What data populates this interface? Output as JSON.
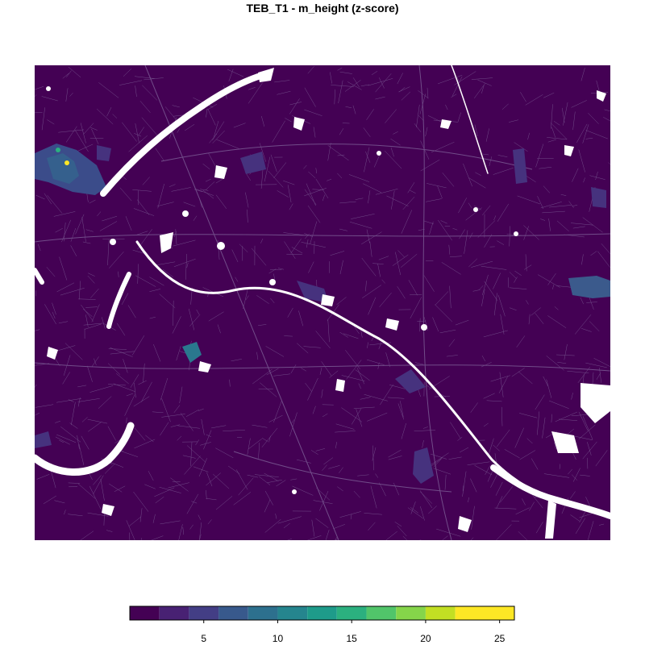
{
  "title": "TEB_T1 - m_height  (z-score)",
  "map": {
    "base_color": "#440154",
    "street_color": "#7a5a93",
    "gap_color": "#ffffff",
    "background": "#ffffff"
  },
  "legend": {
    "min": 0,
    "max": 26,
    "break_step": 2,
    "tick_values": [
      5,
      10,
      15,
      20,
      25
    ],
    "tick_labels": [
      "5",
      "10",
      "15",
      "20",
      "25"
    ],
    "palette": [
      "#440154",
      "#482173",
      "#433E85",
      "#38598C",
      "#2D708E",
      "#25858E",
      "#1E9B8A",
      "#2BB07F",
      "#51C56A",
      "#85D54A",
      "#C2DF23",
      "#FDE725"
    ]
  }
}
